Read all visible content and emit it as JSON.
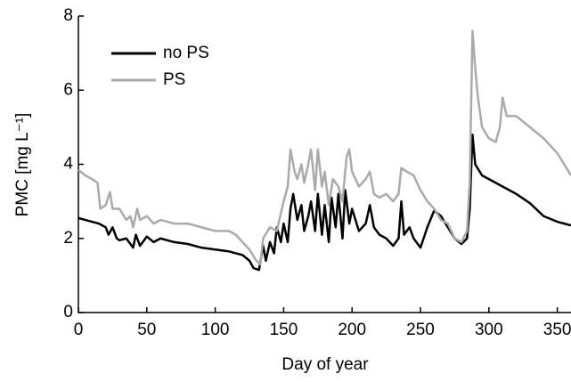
{
  "chart_data": {
    "type": "line",
    "xlabel": "Day of year",
    "ylabel": "PMC [mg L⁻¹]",
    "xlim": [
      0,
      360
    ],
    "xticks": [
      0,
      50,
      100,
      150,
      200,
      250,
      300,
      350
    ],
    "ylim": [
      0,
      8
    ],
    "yticks": [
      0,
      2,
      4,
      6,
      8
    ],
    "legend": "upper left",
    "series": [
      {
        "name": "no PS",
        "color": "#000000",
        "x": [
          0,
          5,
          10,
          15,
          20,
          22,
          25,
          28,
          30,
          35,
          40,
          42,
          45,
          50,
          55,
          60,
          70,
          80,
          90,
          100,
          110,
          115,
          120,
          125,
          128,
          132,
          135,
          137,
          140,
          143,
          145,
          148,
          150,
          153,
          155,
          157,
          160,
          163,
          165,
          168,
          170,
          173,
          175,
          178,
          180,
          183,
          185,
          188,
          190,
          193,
          195,
          198,
          200,
          205,
          210,
          213,
          216,
          220,
          225,
          230,
          234,
          236,
          238,
          242,
          245,
          250,
          255,
          260,
          265,
          270,
          275,
          280,
          284,
          286,
          288,
          290,
          295,
          300,
          310,
          320,
          330,
          340,
          350,
          360
        ],
        "values": [
          2.55,
          2.5,
          2.45,
          2.4,
          2.3,
          2.1,
          2.3,
          2.0,
          1.95,
          2.0,
          1.75,
          2.1,
          1.8,
          2.05,
          1.9,
          2.0,
          1.9,
          1.85,
          1.75,
          1.7,
          1.65,
          1.6,
          1.55,
          1.4,
          1.2,
          1.15,
          1.8,
          1.4,
          1.9,
          1.6,
          2.3,
          1.9,
          2.4,
          1.9,
          2.8,
          3.2,
          2.5,
          2.9,
          2.2,
          2.6,
          3.0,
          2.2,
          3.2,
          2.1,
          2.9,
          1.9,
          3.1,
          2.3,
          3.2,
          2.0,
          3.3,
          2.4,
          2.8,
          2.2,
          2.4,
          2.9,
          2.3,
          2.1,
          2.0,
          1.8,
          2.0,
          3.0,
          2.1,
          2.3,
          2.0,
          1.75,
          2.3,
          2.75,
          2.6,
          2.3,
          2.0,
          1.85,
          2.0,
          2.8,
          4.8,
          4.0,
          3.7,
          3.6,
          3.4,
          3.2,
          2.95,
          2.6,
          2.45,
          2.35
        ]
      },
      {
        "name": "PS",
        "color": "#aaaaaa",
        "x": [
          0,
          5,
          10,
          14,
          16,
          20,
          23,
          25,
          30,
          35,
          38,
          40,
          43,
          45,
          50,
          55,
          60,
          70,
          80,
          90,
          100,
          110,
          115,
          120,
          125,
          130,
          133,
          135,
          140,
          145,
          150,
          153,
          155,
          158,
          160,
          163,
          165,
          168,
          170,
          173,
          175,
          178,
          180,
          183,
          186,
          190,
          193,
          196,
          198,
          200,
          205,
          210,
          213,
          216,
          220,
          225,
          230,
          234,
          236,
          240,
          245,
          250,
          255,
          260,
          265,
          270,
          275,
          280,
          284,
          286,
          288,
          290,
          292,
          295,
          300,
          305,
          308,
          310,
          313,
          320,
          330,
          340,
          350,
          355,
          360
        ],
        "values": [
          3.85,
          3.7,
          3.6,
          3.5,
          2.8,
          2.9,
          3.25,
          2.8,
          2.8,
          2.5,
          2.6,
          2.3,
          2.8,
          2.5,
          2.6,
          2.4,
          2.5,
          2.4,
          2.4,
          2.3,
          2.2,
          2.2,
          2.1,
          1.9,
          1.7,
          1.4,
          1.3,
          2.0,
          2.3,
          2.2,
          3.0,
          3.4,
          4.4,
          3.8,
          3.6,
          4.0,
          3.5,
          4.0,
          4.4,
          3.3,
          4.4,
          3.4,
          3.8,
          2.9,
          3.6,
          3.4,
          3.0,
          4.2,
          4.4,
          3.8,
          3.4,
          3.6,
          3.8,
          3.2,
          3.1,
          3.2,
          3.0,
          3.2,
          3.9,
          3.8,
          3.7,
          3.3,
          3.0,
          2.8,
          2.5,
          2.4,
          2.0,
          1.9,
          2.2,
          3.5,
          7.6,
          6.6,
          5.8,
          5.0,
          4.7,
          4.6,
          5.0,
          5.8,
          5.3,
          5.3,
          5.0,
          4.7,
          4.3,
          4.0,
          3.7
        ]
      }
    ]
  }
}
